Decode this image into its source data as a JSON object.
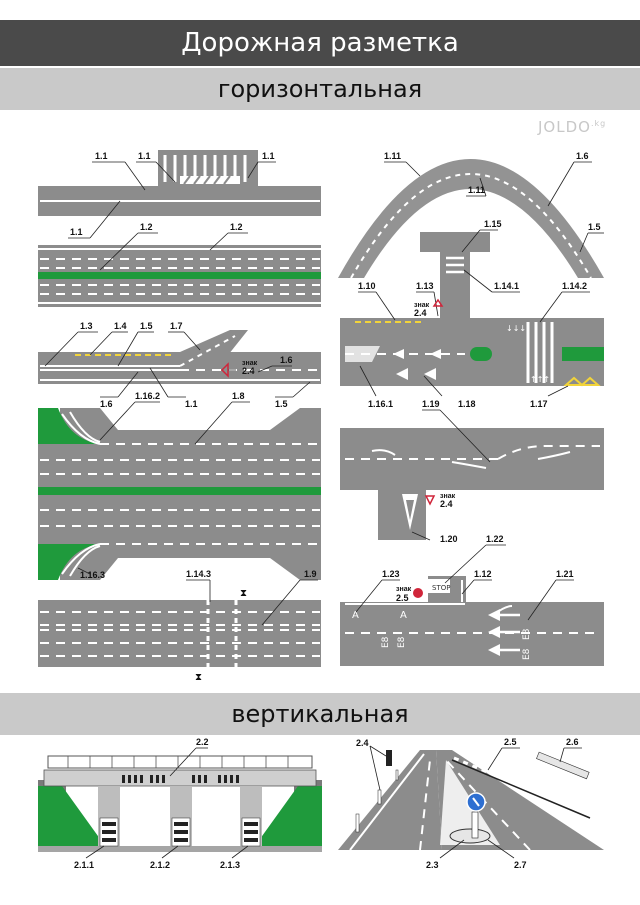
{
  "header": {
    "title": "Дорожная разметка"
  },
  "sections": {
    "horizontal": "горизонтальная",
    "vertical": "вертикальная"
  },
  "watermark": {
    "text": "JOLDO",
    "suffix": ".kg"
  },
  "labels": {
    "l1_1a": "1.1",
    "l1_1b": "1.1",
    "l1_1c": "1.1",
    "l1_1d": "1.1",
    "l1_2a": "1.2",
    "l1_2b": "1.2",
    "l1_3": "1.3",
    "l1_4": "1.4",
    "l1_5a": "1.5",
    "l1_7": "1.7",
    "l1_6a": "1.6",
    "l1_6b": "1.6",
    "l1_1e": "1.1",
    "l1_5b": "1.5",
    "l1_16_2": "1.16.2",
    "l1_8": "1.8",
    "l1_16_3": "1.16.3",
    "l1_14_3": "1.14.3",
    "l1_9": "1.9",
    "l1_11a": "1.11",
    "l1_11b": "1.11",
    "l1_6c": "1.6",
    "l1_5c": "1.5",
    "l1_15": "1.15",
    "l1_14_1": "1.14.1",
    "l1_10": "1.10",
    "l1_13": "1.13",
    "l1_14_2": "1.14.2",
    "l1_16_1": "1.16.1",
    "l1_18": "1.18",
    "l1_17": "1.17",
    "l1_19": "1.19",
    "l1_20": "1.20",
    "l1_22": "1.22",
    "l1_23": "1.23",
    "l1_12": "1.12",
    "l1_21": "1.21",
    "l2_2": "2.2",
    "l2_1_1": "2.1.1",
    "l2_1_2": "2.1.2",
    "l2_1_3": "2.1.3",
    "l2_4": "2.4",
    "l2_5": "2.5",
    "l2_6": "2.6",
    "l2_3": "2.3",
    "l2_7": "2.7"
  },
  "signs": {
    "znak": "знак",
    "s24a": "2.4",
    "s24b": "2.4",
    "s24c": "2.4",
    "s25": "2.5"
  },
  "road_text": {
    "stop": "STOP",
    "a": "A",
    "e8": "E8"
  },
  "colors": {
    "road": "#8c8c8c",
    "grass": "#1f9a3c",
    "title_bg": "#4a4a4a",
    "section_bg": "#c9c9c9",
    "yellow": "#f2d43a"
  }
}
